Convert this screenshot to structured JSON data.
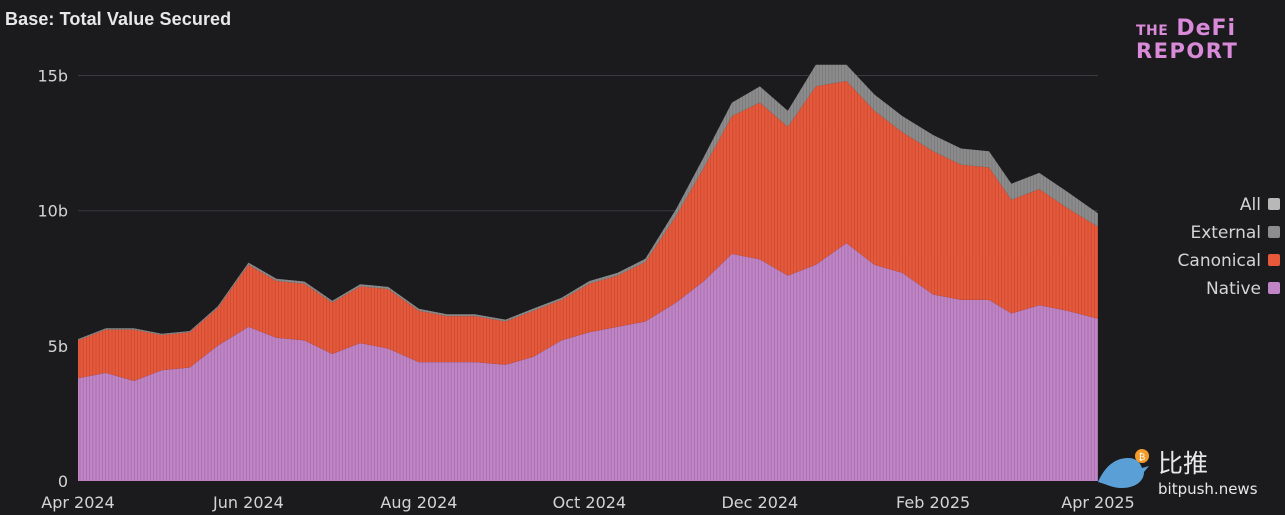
{
  "colors": {
    "background": "#1b1b1e",
    "gridline": "#3a3a3f",
    "text": "#d4d4d4",
    "native": "#c084c7",
    "canonical": "#e8583a",
    "external": "#8c8c8c",
    "all": "#b8b8b8",
    "logo": "#d98ad8",
    "watermark_bird": "#5aa0d6",
    "watermark_coin": "#f39a2b"
  },
  "logo": {
    "line1a": "THE",
    "line1b": "DeFi",
    "line2": "REPORT"
  },
  "watermark": {
    "chinese": "比推",
    "site": "bitpush.news",
    "icon": "bird-icon"
  },
  "chart_data": {
    "type": "area",
    "stacked": true,
    "title": "Base: Total Value Secured",
    "xlabel": "",
    "ylabel": "",
    "ylim": [
      0,
      16.5
    ],
    "yticks": [
      0,
      5,
      10,
      15
    ],
    "ytick_labels": [
      "0",
      "5b",
      "10b",
      "15b"
    ],
    "xlim": [
      "2024-04-01",
      "2025-04-01"
    ],
    "xticks": [
      "2024-04-01",
      "2024-06-01",
      "2024-08-01",
      "2024-10-01",
      "2024-12-01",
      "2025-02-01",
      "2025-04-01"
    ],
    "xtick_labels": [
      "Apr 2024",
      "Jun 2024",
      "Aug 2024",
      "Oct 2024",
      "Dec 2024",
      "Feb 2025",
      "Apr 2025"
    ],
    "grid": true,
    "legend_position": "right",
    "legend": [
      "All",
      "External",
      "Canonical",
      "Native"
    ],
    "x": [
      "2024-04-01",
      "2024-04-11",
      "2024-04-21",
      "2024-05-01",
      "2024-05-11",
      "2024-05-21",
      "2024-06-01",
      "2024-06-11",
      "2024-06-21",
      "2024-07-01",
      "2024-07-11",
      "2024-07-21",
      "2024-08-01",
      "2024-08-11",
      "2024-08-21",
      "2024-09-01",
      "2024-09-11",
      "2024-09-21",
      "2024-10-01",
      "2024-10-11",
      "2024-10-21",
      "2024-11-01",
      "2024-11-11",
      "2024-11-21",
      "2024-12-01",
      "2024-12-11",
      "2024-12-21",
      "2025-01-01",
      "2025-01-11",
      "2025-01-21",
      "2025-02-01",
      "2025-02-11",
      "2025-02-21",
      "2025-03-01",
      "2025-03-11",
      "2025-03-21",
      "2025-04-01"
    ],
    "series": [
      {
        "name": "Native",
        "values": [
          3.8,
          4.0,
          3.7,
          4.1,
          4.2,
          5.0,
          5.7,
          5.3,
          5.2,
          4.7,
          5.1,
          4.9,
          4.4,
          4.4,
          4.4,
          4.3,
          4.6,
          5.2,
          5.5,
          5.7,
          5.9,
          6.6,
          7.4,
          8.4,
          8.2,
          7.6,
          8.0,
          8.8,
          8.0,
          7.7,
          6.9,
          6.7,
          6.7,
          6.2,
          6.5,
          6.3,
          6.0
        ]
      },
      {
        "name": "Canonical",
        "values": [
          1.4,
          1.6,
          1.9,
          1.3,
          1.3,
          1.4,
          2.3,
          2.1,
          2.1,
          1.9,
          2.1,
          2.2,
          1.9,
          1.7,
          1.7,
          1.6,
          1.7,
          1.5,
          1.8,
          1.9,
          2.2,
          3.2,
          4.2,
          5.1,
          5.8,
          5.5,
          6.6,
          6.0,
          5.7,
          5.2,
          5.3,
          5.0,
          4.9,
          4.2,
          4.3,
          3.8,
          3.4
        ]
      },
      {
        "name": "External",
        "values": [
          0.05,
          0.05,
          0.05,
          0.05,
          0.05,
          0.06,
          0.08,
          0.08,
          0.08,
          0.07,
          0.08,
          0.08,
          0.07,
          0.07,
          0.07,
          0.07,
          0.08,
          0.08,
          0.1,
          0.1,
          0.12,
          0.25,
          0.4,
          0.5,
          0.6,
          0.6,
          0.8,
          0.6,
          0.6,
          0.6,
          0.6,
          0.6,
          0.6,
          0.6,
          0.6,
          0.6,
          0.5
        ]
      }
    ]
  }
}
